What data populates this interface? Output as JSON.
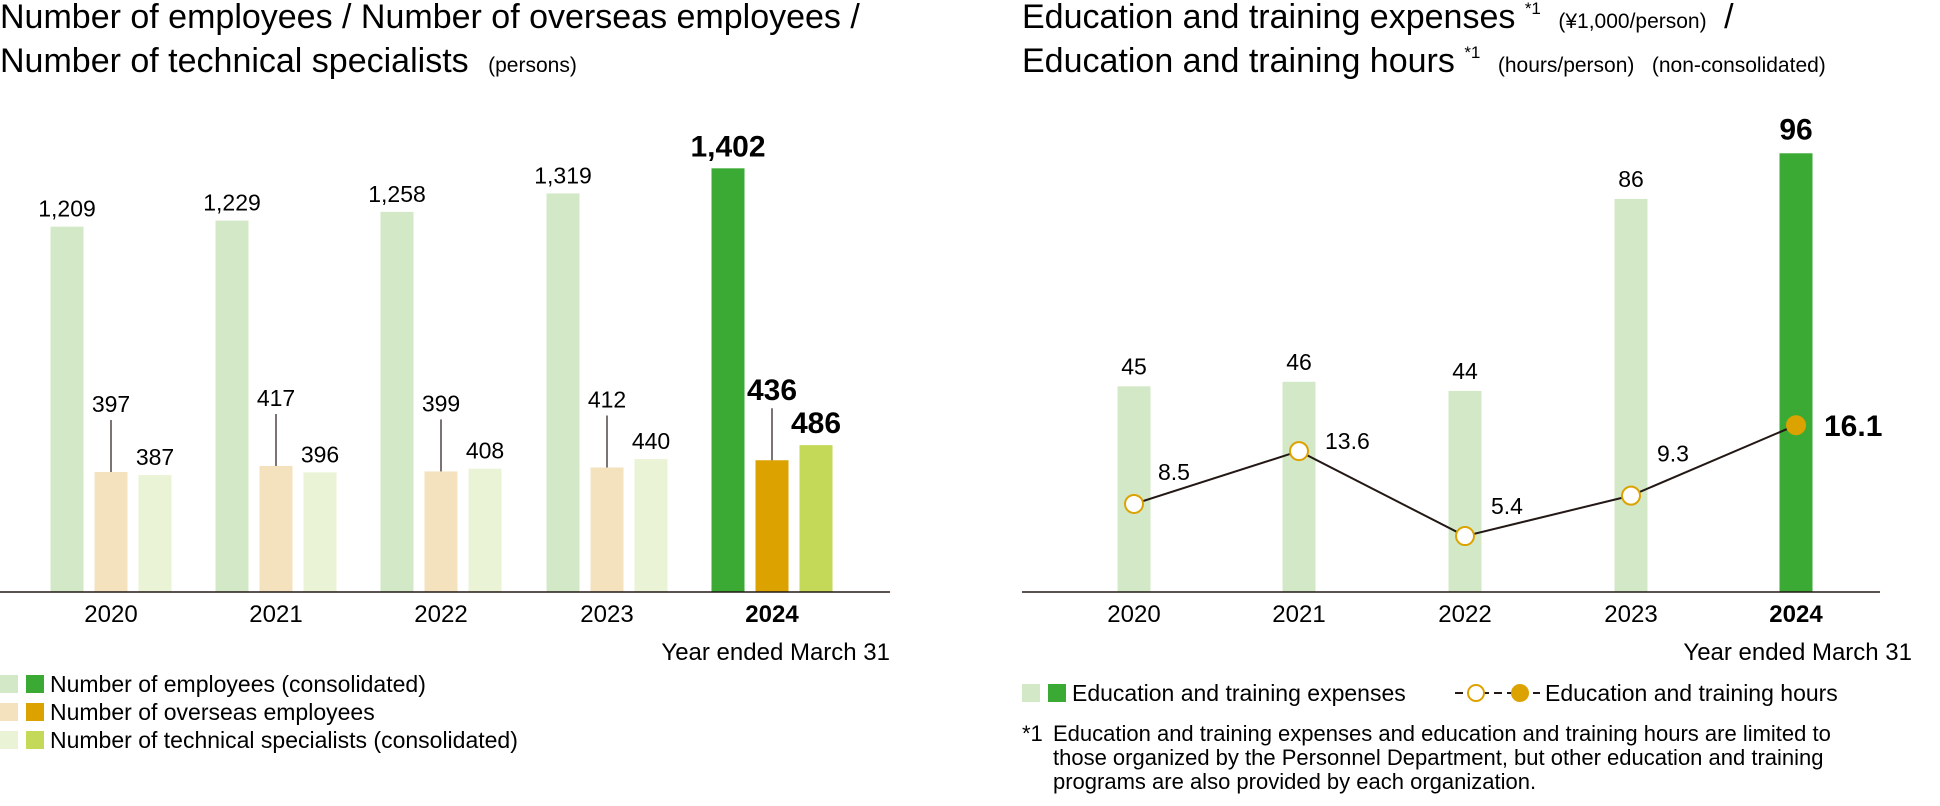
{
  "colors": {
    "employees_light": "#d3e8c7",
    "employees_dark": "#3aaa35",
    "overseas_light": "#f4e1bd",
    "overseas_dark": "#dca200",
    "technical_light": "#ebf3d6",
    "technical_dark": "#c3d957",
    "expenses_light": "#d3e8c7",
    "expenses_dark": "#3aaa35",
    "hours_marker": "#dca200",
    "line": "#231815",
    "axis": "#231815"
  },
  "chart_data": [
    {
      "type": "bar",
      "title": "Number of employees / Number of overseas employees /",
      "title_line2": "Number of technical specialists",
      "unit": "(persons)",
      "xlabel": "Year ended March 31",
      "categories": [
        "2020",
        "2021",
        "2022",
        "2023",
        "2024"
      ],
      "highlight_category": "2024",
      "ylim": [
        0,
        1500
      ],
      "series": [
        {
          "name": "Number of employees (consolidated)",
          "values": [
            1209,
            1229,
            1258,
            1319,
            1402
          ],
          "labels": [
            "1,209",
            "1,229",
            "1,258",
            "1,319",
            "1,402"
          ]
        },
        {
          "name": "Number of overseas employees",
          "values": [
            397,
            417,
            399,
            412,
            436
          ],
          "labels": [
            "397",
            "417",
            "399",
            "412",
            "436"
          ]
        },
        {
          "name": "Number of technical specialists (consolidated)",
          "values": [
            387,
            396,
            408,
            440,
            486
          ],
          "labels": [
            "387",
            "396",
            "408",
            "440",
            "486"
          ]
        }
      ]
    },
    {
      "type": "bar+line",
      "title_part1": "Education and training expenses",
      "title_sup1": "*1",
      "title_unit1": "(¥1,000/person)",
      "title_sep": "/",
      "title_part2": "Education and training hours",
      "title_sup2": "*1",
      "title_unit2": "(hours/person)",
      "title_scope": "(non-consolidated)",
      "xlabel": "Year ended March 31",
      "categories": [
        "2020",
        "2021",
        "2022",
        "2023",
        "2024"
      ],
      "highlight_category": "2024",
      "bar_ylim": [
        0,
        100
      ],
      "line_ylim": [
        0,
        30
      ],
      "series": [
        {
          "name": "Education and training expenses",
          "kind": "bar",
          "values": [
            45,
            46,
            44,
            86,
            96
          ],
          "labels": [
            "45",
            "46",
            "44",
            "86",
            "96"
          ]
        },
        {
          "name": "Education and training hours",
          "kind": "line",
          "values": [
            8.5,
            13.6,
            5.4,
            9.3,
            16.1
          ],
          "labels": [
            "8.5",
            "13.6",
            "5.4",
            "9.3",
            "16.1"
          ]
        }
      ],
      "footnote_mark": "*1",
      "footnote_lines": [
        "Education and training expenses and education and training hours are limited to",
        "those organized by the Personnel Department, but other education and training",
        "programs are also provided by each organization."
      ]
    }
  ]
}
